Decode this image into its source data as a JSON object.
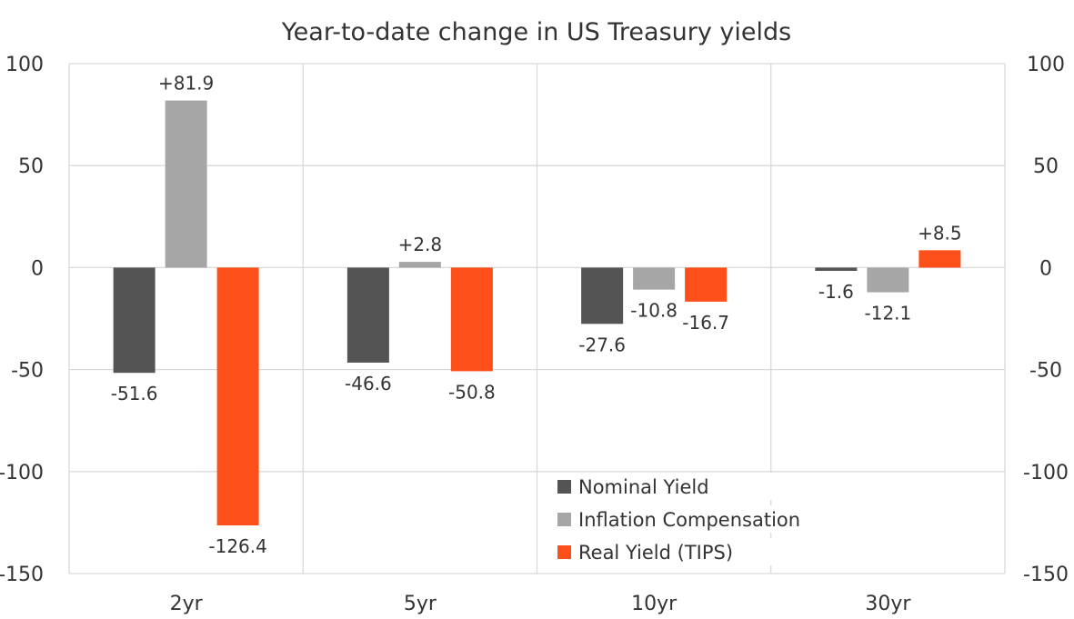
{
  "chart_data": {
    "type": "bar",
    "title": "Year-to-date change in US Treasury yields",
    "xlabel": "",
    "ylabel": "",
    "categories": [
      "2yr",
      "5yr",
      "10yr",
      "30yr"
    ],
    "series": [
      {
        "name": "Nominal Yield",
        "color": "#545454",
        "values": [
          -51.6,
          -46.6,
          -27.6,
          -1.6
        ],
        "labels": [
          "-51.6",
          "-46.6",
          "-27.6",
          "-1.6"
        ]
      },
      {
        "name": "Inflation Compensation",
        "color": "#a6a6a6",
        "values": [
          81.9,
          2.8,
          -10.8,
          -12.1
        ],
        "labels": [
          "+81.9",
          "+2.8",
          "-10.8",
          "-12.1"
        ]
      },
      {
        "name": "Real Yield (TIPS)",
        "color": "#fc4f1a",
        "values": [
          -126.4,
          -50.8,
          -16.7,
          8.5
        ],
        "labels": [
          "-126.4",
          "-50.8",
          "-16.7",
          "+8.5"
        ]
      }
    ],
    "ylim": [
      -150,
      100
    ],
    "yticks": [
      100,
      50,
      0,
      -50,
      -100,
      -150
    ],
    "ytick_labels": [
      "100",
      "50",
      "0",
      "-50",
      "-100",
      "-150"
    ],
    "secondary_yaxis": true,
    "grid": true,
    "legend_position": "bottom-center-right"
  }
}
